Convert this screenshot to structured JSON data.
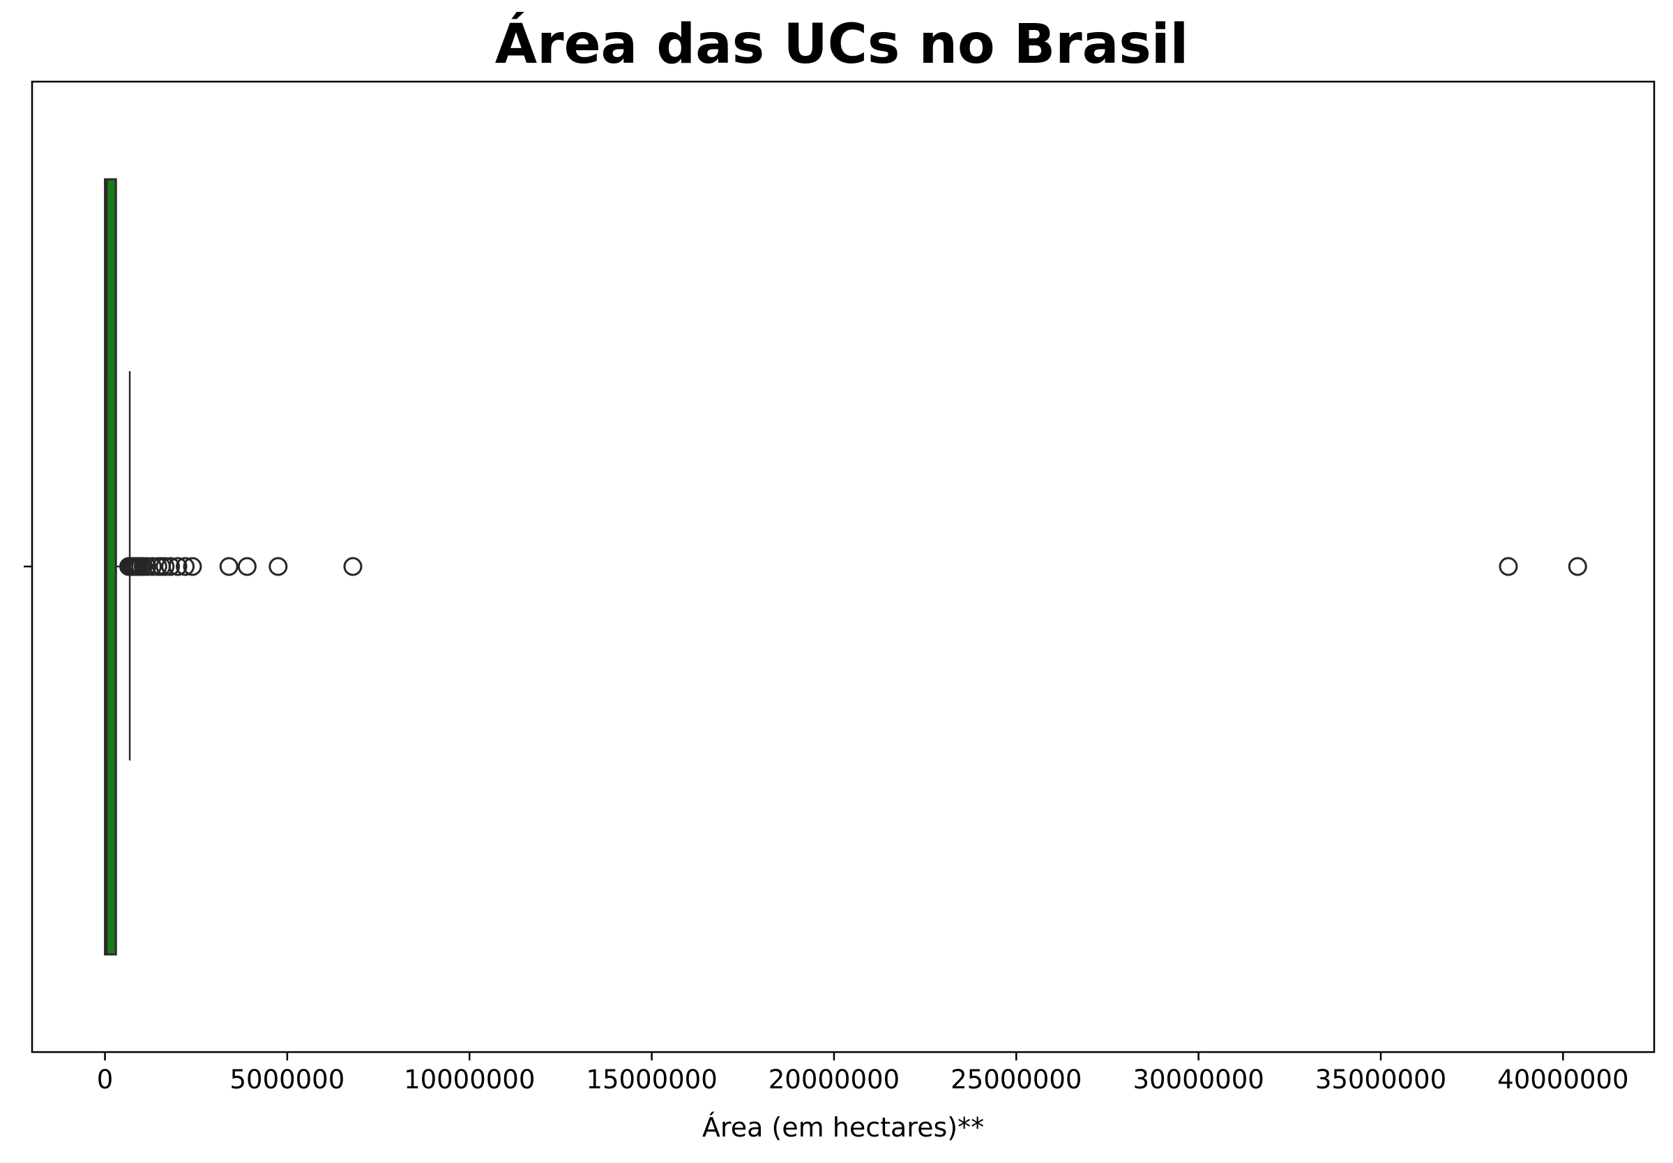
{
  "chart_data": {
    "type": "boxplot",
    "orientation": "horizontal",
    "title": "Área das UCs no Brasil",
    "xlabel": "Área (em hectares)**",
    "ylabel": "",
    "xlim": [
      -2000000,
      42500000
    ],
    "x_ticks": [
      0,
      5000000,
      10000000,
      15000000,
      20000000,
      25000000,
      30000000,
      35000000,
      40000000
    ],
    "x_tick_labels": [
      "0",
      "5000000",
      "10000000",
      "15000000",
      "20000000",
      "25000000",
      "30000000",
      "35000000",
      "40000000"
    ],
    "grid": false,
    "legend": false,
    "box": {
      "whisker_low": 0,
      "q1": 0,
      "median": 50000,
      "q3": 300000,
      "whisker_high": 680000,
      "color": "#1a7a1a",
      "edge_color": "#2b2b2b"
    },
    "outliers": [
      650000,
      700000,
      740000,
      780000,
      820000,
      870000,
      920000,
      980000,
      1050000,
      1150000,
      1300000,
      1450000,
      1550000,
      1650000,
      1800000,
      2000000,
      2200000,
      2400000,
      3400000,
      3900000,
      4750000,
      6800000,
      38500000,
      40400000
    ]
  }
}
